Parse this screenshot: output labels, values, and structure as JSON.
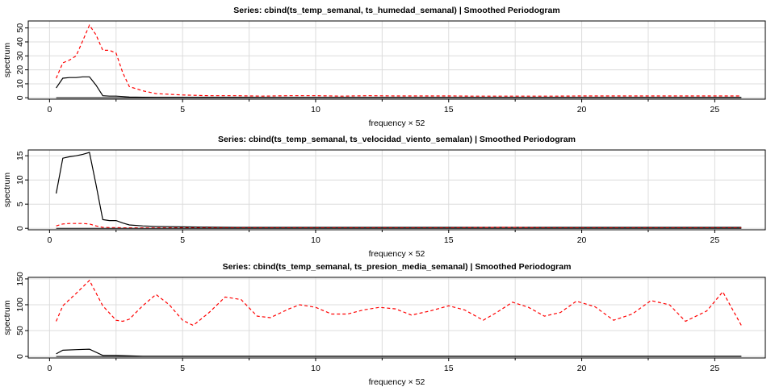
{
  "figure": {
    "panels": [
      {
        "title": "Series: cbind(ts_temp_semanal, ts_humedad_semanal)  |  Smoothed Periodogram"
      },
      {
        "title": "Series: cbind(ts_temp_semanal, ts_velocidad_viento_semalan)  |  Smoothed Periodogram"
      },
      {
        "title": "Series: cbind(ts_temp_semanal, ts_presion_media_semanal)  |  Smoothed Periodogram"
      }
    ]
  },
  "chart_data": [
    {
      "type": "line",
      "title": "Series: cbind(ts_temp_semanal, ts_humedad_semanal)  |  Smoothed Periodogram",
      "xlabel": "frequency × 52",
      "ylabel": "spectrum",
      "xlim": [
        -0.8,
        26.9
      ],
      "ylim": [
        -1,
        55
      ],
      "xticks": [
        0,
        5,
        10,
        15,
        20,
        25
      ],
      "yticks": [
        0,
        10,
        20,
        30,
        40,
        50
      ],
      "grid": true,
      "x": [
        0.25,
        0.5,
        0.75,
        1.0,
        1.25,
        1.5,
        1.75,
        2.0,
        2.25,
        2.5,
        2.75,
        3.0,
        3.5,
        4,
        5,
        6,
        7,
        8,
        9,
        10,
        11,
        12,
        13,
        14,
        15,
        16,
        17,
        18,
        19,
        20,
        21,
        22,
        23,
        24,
        25,
        26
      ],
      "series": [
        {
          "color": "#000000",
          "linestyle": "solid",
          "values": [
            7,
            14,
            14.5,
            14.5,
            15,
            15,
            9,
            1.5,
            1.2,
            1.2,
            0.9,
            0.5,
            0.4,
            0.3,
            0.3,
            0.3,
            0.3,
            0.2,
            0.2,
            0.2,
            0.2,
            0.2,
            0.2,
            0.2,
            0.2,
            0.2,
            0.2,
            0.2,
            0.2,
            0.2,
            0.2,
            0.2,
            0.2,
            0.2,
            0.2,
            0.2
          ]
        },
        {
          "color": "#ff0000",
          "linestyle": "dashed",
          "values": [
            14,
            25,
            27,
            30,
            41,
            52,
            45,
            34,
            34,
            32,
            18,
            8,
            5,
            3,
            2,
            1.5,
            1.5,
            1.2,
            1.5,
            1.5,
            1.2,
            1.5,
            1.3,
            1.3,
            1.3,
            1.2,
            1.2,
            1.2,
            1.2,
            1.3,
            1.3,
            1.3,
            1.3,
            1.3,
            1.3,
            1.3
          ]
        }
      ]
    },
    {
      "type": "line",
      "title": "Series: cbind(ts_temp_semanal, ts_velocidad_viento_semalan)  |  Smoothed Periodogram",
      "xlabel": "frequency × 52",
      "ylabel": "spectrum",
      "xlim": [
        -0.8,
        26.9
      ],
      "ylim": [
        -0.3,
        16.2
      ],
      "xticks": [
        0,
        5,
        10,
        15,
        20,
        25
      ],
      "yticks": [
        0,
        5,
        10,
        15
      ],
      "grid": true,
      "x": [
        0.25,
        0.5,
        0.75,
        1.0,
        1.25,
        1.5,
        1.75,
        2.0,
        2.25,
        2.5,
        2.75,
        3.0,
        3.5,
        4,
        5,
        6,
        7,
        8,
        9,
        10,
        11,
        12,
        13,
        14,
        15,
        16,
        17,
        18,
        19,
        20,
        21,
        22,
        23,
        24,
        25,
        26
      ],
      "series": [
        {
          "color": "#000000",
          "linestyle": "solid",
          "values": [
            7.2,
            14.5,
            14.8,
            15.0,
            15.3,
            15.7,
            9,
            1.8,
            1.6,
            1.6,
            1.1,
            0.7,
            0.5,
            0.4,
            0.3,
            0.25,
            0.2,
            0.2,
            0.2,
            0.2,
            0.2,
            0.2,
            0.2,
            0.2,
            0.2,
            0.2,
            0.2,
            0.2,
            0.2,
            0.2,
            0.2,
            0.2,
            0.2,
            0.2,
            0.2,
            0.2
          ]
        },
        {
          "color": "#ff0000",
          "linestyle": "dashed",
          "values": [
            0.5,
            0.9,
            1.0,
            1.0,
            1.0,
            0.9,
            0.5,
            0.2,
            0.15,
            0.15,
            0.1,
            0.1,
            0.1,
            0.1,
            0.1,
            0.1,
            0.1,
            0.1,
            0.1,
            0.1,
            0.1,
            0.1,
            0.1,
            0.1,
            0.1,
            0.15,
            0.2,
            0.15,
            0.1,
            0.1,
            0.1,
            0.1,
            0.1,
            0.1,
            0.1,
            0.1
          ]
        }
      ]
    },
    {
      "type": "line",
      "title": "Series: cbind(ts_temp_semanal, ts_presion_media_semanal)  |  Smoothed Periodogram",
      "xlabel": "frequency × 52",
      "ylabel": "spectrum",
      "xlim": [
        -0.8,
        26.9
      ],
      "ylim": [
        -3,
        153
      ],
      "xticks": [
        0,
        5,
        10,
        15,
        20,
        25
      ],
      "yticks": [
        0,
        50,
        100,
        150
      ],
      "grid": true,
      "x": [
        0.25,
        0.5,
        1.0,
        1.5,
        2.0,
        2.5,
        2.75,
        3.0,
        3.5,
        4.0,
        4.5,
        5.0,
        5.4,
        6.0,
        6.6,
        7.2,
        7.8,
        8.3,
        9.0,
        9.4,
        10.0,
        10.6,
        11.2,
        11.8,
        12.4,
        13.0,
        13.6,
        14.3,
        15.0,
        15.6,
        16.3,
        16.8,
        17.4,
        18.0,
        18.6,
        19.2,
        19.8,
        20.5,
        21.2,
        21.9,
        22.6,
        23.3,
        23.9,
        24.7,
        25.3,
        26.0
      ],
      "series": [
        {
          "color": "#000000",
          "linestyle": "solid",
          "values": [
            5,
            12,
            13,
            14,
            2,
            2,
            1.5,
            1,
            0.5,
            0.5,
            0.3,
            0.2,
            0.2,
            0.2,
            0.2,
            0.2,
            0.2,
            0.2,
            0.2,
            0.2,
            0.2,
            0.2,
            0.2,
            0.2,
            0.2,
            0.2,
            0.2,
            0.2,
            0.2,
            0.2,
            0.2,
            0.2,
            0.2,
            0.2,
            0.2,
            0.2,
            0.2,
            0.2,
            0.2,
            0.2,
            0.2,
            0.2,
            0.2,
            0.2,
            0.2,
            0.2
          ]
        },
        {
          "color": "#ff0000",
          "linestyle": "dashed",
          "values": [
            68,
            98,
            122,
            147,
            98,
            70,
            68,
            72,
            98,
            120,
            100,
            70,
            60,
            85,
            115,
            110,
            78,
            75,
            92,
            100,
            95,
            82,
            82,
            90,
            95,
            92,
            80,
            88,
            98,
            90,
            70,
            85,
            105,
            95,
            78,
            85,
            107,
            96,
            70,
            82,
            108,
            100,
            68,
            88,
            125,
            60
          ]
        }
      ]
    }
  ]
}
